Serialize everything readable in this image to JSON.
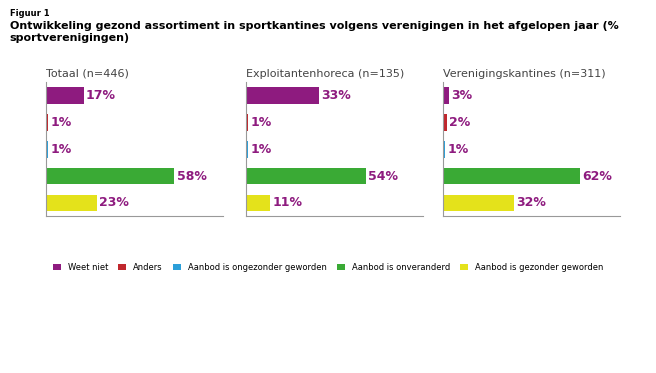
{
  "figure": {
    "label": "Figuur 1",
    "title": "Ontwikkeling gezond assortiment in sportkantines volgens verenigingen in het afgelopen jaar (% sportverenigingen)"
  },
  "chart_data": [
    {
      "type": "bar",
      "orientation": "horizontal",
      "title": "Totaal (n=446)",
      "categories": [
        "Weet niet",
        "Anders",
        "Aanbod is ongezonder geworden",
        "Aanbod is onveranderd",
        "Aanbod is gezonder geworden"
      ],
      "values": [
        17,
        1,
        1,
        58,
        23
      ],
      "value_labels": [
        "17%",
        "1%",
        "1%",
        "58%",
        "23%"
      ],
      "colors": [
        "#8e1b7f",
        "#c0272d",
        "#2b9fd9",
        "#3aaa35",
        "#e4e21b"
      ],
      "xlim": [
        0,
        80
      ],
      "data_labels": true,
      "tick_labels": false,
      "legend": "lower center"
    },
    {
      "type": "bar",
      "orientation": "horizontal",
      "title": "Exploitantenhoreca (n=135)",
      "categories": [
        "Weet niet",
        "Anders",
        "Aanbod is ongezonder geworden",
        "Aanbod is onveranderd",
        "Aanbod is gezonder geworden"
      ],
      "values": [
        33,
        1,
        1,
        54,
        11
      ],
      "value_labels": [
        "33%",
        "1%",
        "1%",
        "54%",
        "11%"
      ],
      "colors": [
        "#8e1b7f",
        "#c0272d",
        "#2b9fd9",
        "#3aaa35",
        "#e4e21b"
      ],
      "xlim": [
        0,
        80
      ],
      "data_labels": true,
      "tick_labels": false
    },
    {
      "type": "bar",
      "orientation": "horizontal",
      "title": "Verenigingskantines (n=311)",
      "categories": [
        "Weet niet",
        "Anders",
        "Aanbod is ongezonder geworden",
        "Aanbod is onveranderd",
        "Aanbod is gezonder geworden"
      ],
      "values": [
        3,
        2,
        1,
        62,
        32
      ],
      "value_labels": [
        "3%",
        "2%",
        "1%",
        "62%",
        "32%"
      ],
      "colors": [
        "#8e1b7f",
        "#c0272d",
        "#2b9fd9",
        "#3aaa35",
        "#e4e21b"
      ],
      "xlim": [
        0,
        80
      ],
      "data_labels": true,
      "tick_labels": false
    }
  ]
}
